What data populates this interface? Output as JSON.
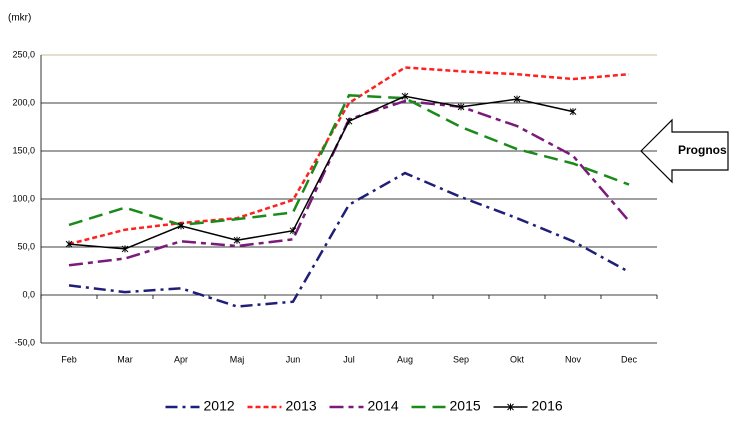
{
  "chart_data": {
    "type": "line",
    "unit_label": "(mkr)",
    "annotation": "Prognos",
    "categories": [
      "Feb",
      "Mar",
      "Apr",
      "Maj",
      "Jun",
      "Jul",
      "Aug",
      "Sep",
      "Okt",
      "Nov",
      "Dec"
    ],
    "series": [
      {
        "name": "2012",
        "color": "#1f1f7a",
        "dash": "12,5,3,5",
        "values": [
          10,
          3,
          7,
          -12,
          -7,
          94,
          127,
          102,
          80,
          56,
          24
        ]
      },
      {
        "name": "2013",
        "color": "#ff2020",
        "dash": "5,3",
        "values": [
          53,
          68,
          75,
          80,
          99,
          200,
          237,
          233,
          230,
          225,
          230
        ]
      },
      {
        "name": "2014",
        "color": "#7a1a7a",
        "dash": "14,5,5,5",
        "values": [
          31,
          38,
          56,
          51,
          58,
          183,
          202,
          196,
          176,
          145,
          77
        ]
      },
      {
        "name": "2015",
        "color": "#1a8a1a",
        "dash": "14,7",
        "values": [
          73,
          91,
          73,
          79,
          86,
          208,
          205,
          175,
          152,
          137,
          115
        ]
      },
      {
        "name": "2016",
        "color": "#000000",
        "marker": "asterisk",
        "values": [
          53,
          48,
          72,
          57,
          67,
          181,
          207,
          196,
          204,
          191,
          null
        ]
      }
    ],
    "ylim": [
      -50,
      250
    ],
    "yticks": [
      {
        "value": -50,
        "label": "-50,0"
      },
      {
        "value": 0,
        "label": "0,0"
      },
      {
        "value": 50,
        "label": "50,0"
      },
      {
        "value": 100,
        "label": "100,0"
      },
      {
        "value": 150,
        "label": "150,0"
      },
      {
        "value": 200,
        "label": "200,0"
      },
      {
        "value": 250,
        "label": "250,0"
      }
    ],
    "grid": true,
    "legend": "bottom"
  }
}
